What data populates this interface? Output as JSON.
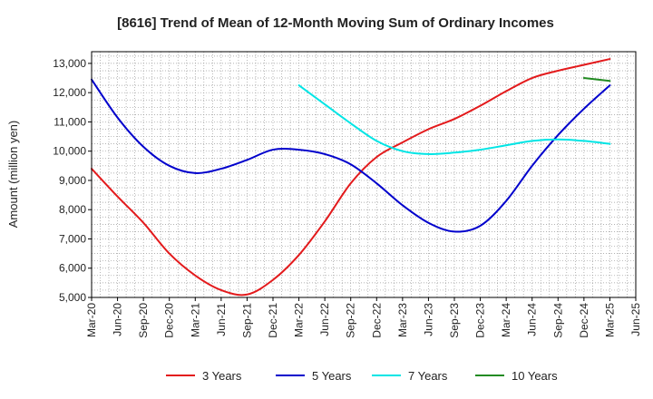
{
  "chart_data": {
    "type": "line",
    "title": "[8616]  Trend of Mean of 12-Month Moving Sum of Ordinary Incomes",
    "xlabel": "",
    "ylabel": "Amount (million yen)",
    "ylim": [
      5000,
      13400
    ],
    "yticks": [
      5000,
      6000,
      7000,
      8000,
      9000,
      10000,
      11000,
      12000,
      13000
    ],
    "ytick_labels": [
      "5,000",
      "6,000",
      "7,000",
      "8,000",
      "9,000",
      "10,000",
      "11,000",
      "12,000",
      "13,000"
    ],
    "x_tick_labels": [
      "Mar-20",
      "Jun-20",
      "Sep-20",
      "Dec-20",
      "Mar-21",
      "Jun-21",
      "Sep-21",
      "Dec-21",
      "Mar-22",
      "Jun-22",
      "Sep-22",
      "Dec-22",
      "Mar-23",
      "Jun-23",
      "Sep-23",
      "Dec-23",
      "Mar-24",
      "Jun-24",
      "Sep-24",
      "Dec-24",
      "Mar-25",
      "Jun-25"
    ],
    "grid": true,
    "legend_position": "bottom",
    "series": [
      {
        "name": "3 Years",
        "color": "#e31a1c",
        "start_quarter": 0,
        "values": [
          9400,
          8450,
          7550,
          6500,
          5750,
          5250,
          5100,
          5600,
          6450,
          7600,
          8900,
          9800,
          10300,
          10750,
          11100,
          11550,
          12050,
          12500,
          12750,
          12950,
          13150
        ]
      },
      {
        "name": "5 Years",
        "color": "#0000cc",
        "start_quarter": 0,
        "values": [
          12450,
          11150,
          10150,
          9500,
          9250,
          9400,
          9700,
          10050,
          10050,
          9900,
          9550,
          8900,
          8150,
          7550,
          7250,
          7450,
          8300,
          9500,
          10550,
          11450,
          12250
        ]
      },
      {
        "name": "7 Years",
        "color": "#00e5e5",
        "start_quarter": 8,
        "values": [
          12250,
          11600,
          10950,
          10350,
          10000,
          9900,
          9950,
          10050,
          10200,
          10350,
          10400,
          10350,
          10250
        ]
      },
      {
        "name": "10 Years",
        "color": "#228b22",
        "start_quarter": 19,
        "values": [
          12500,
          12400
        ]
      }
    ]
  }
}
